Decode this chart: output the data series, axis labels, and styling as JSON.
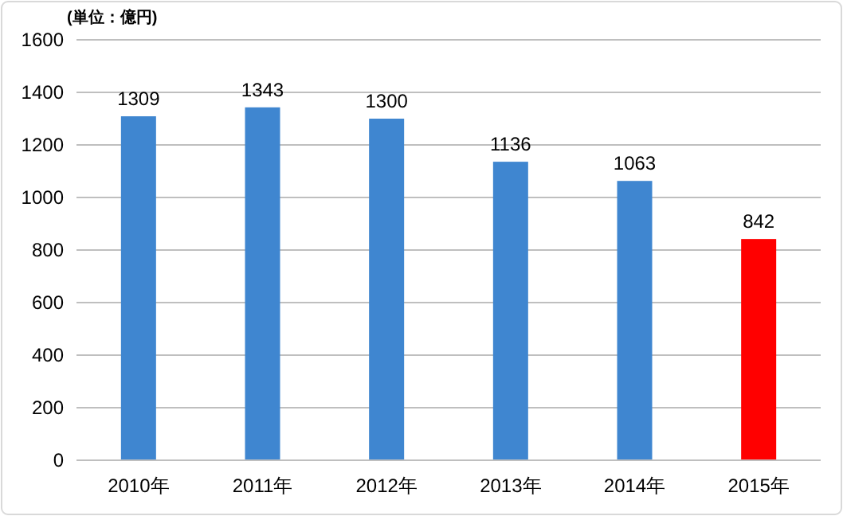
{
  "chart_data": {
    "type": "bar",
    "ylabel": "(単位：億円)",
    "categories": [
      "2010年",
      "2011年",
      "2012年",
      "2013年",
      "2014年",
      "2015年"
    ],
    "values": [
      1309,
      1343,
      1300,
      1136,
      1063,
      842
    ],
    "colors": [
      "#3f86d0",
      "#3f86d0",
      "#3f86d0",
      "#3f86d0",
      "#3f86d0",
      "#ff0000"
    ],
    "ylim": [
      0,
      1600
    ],
    "yticks": [
      0,
      200,
      400,
      600,
      800,
      1000,
      1200,
      1400,
      1600
    ],
    "grid": "y",
    "data_labels": true
  }
}
